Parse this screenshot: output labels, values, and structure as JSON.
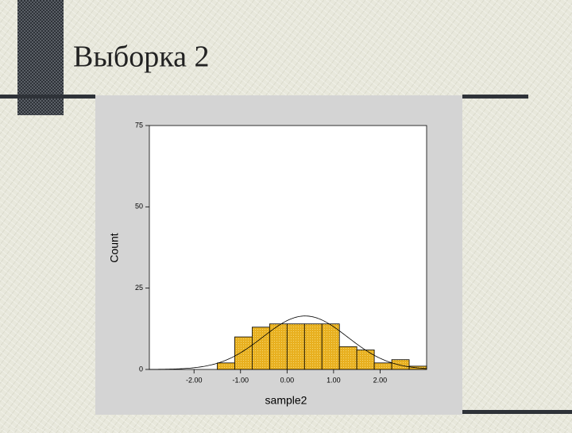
{
  "slide_title": "Выборка 2",
  "chart_data": {
    "type": "histogram",
    "x_label": "sample2",
    "y_label": "Count",
    "bins": [
      -1.5,
      -1.125,
      -0.75,
      -0.375,
      0,
      0.375,
      0.75,
      1.125,
      1.5,
      1.875,
      2.25,
      2.625,
      3.0
    ],
    "counts": [
      2,
      10,
      13,
      14,
      14,
      14,
      14,
      7,
      6,
      2,
      3,
      1
    ],
    "color": "#e8b020",
    "curve": {
      "mean": 0.39,
      "sd": 0.91
    },
    "xlim": [
      -2.96,
      3.0
    ],
    "xticks": [
      {
        "value": -2,
        "label": "-2.00"
      },
      {
        "value": -1,
        "label": "-1.00"
      },
      {
        "value": 0,
        "label": "0.00"
      },
      {
        "value": 1,
        "label": "1.00"
      },
      {
        "value": 2,
        "label": "2.00"
      }
    ],
    "ylim": [
      0,
      75
    ],
    "yticks": [
      0,
      25,
      50,
      75
    ]
  }
}
